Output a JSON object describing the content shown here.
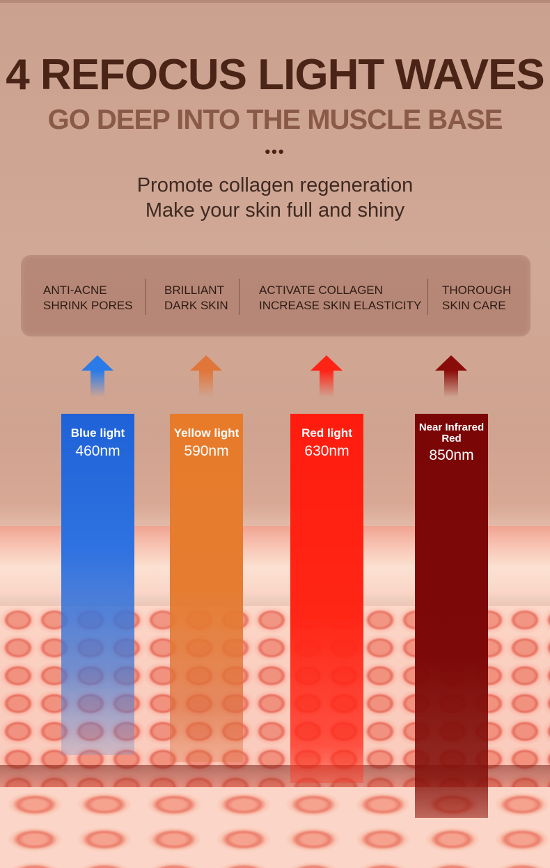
{
  "header": {
    "title": "4 REFOCUS LIGHT WAVES",
    "subtitle": "GO DEEP INTO THE MUSCLE BASE",
    "dots": "•••",
    "tagline_1": "Promote collagen regeneration",
    "tagline_2": "Make your skin full and shiny"
  },
  "benefits": [
    {
      "line1": "ANTI-ACNE",
      "line2": "SHRINK PORES"
    },
    {
      "line1": "BRILLIANT",
      "line2": "DARK SKIN"
    },
    {
      "line1": "ACTIVATE COLLAGEN",
      "line2": "INCREASE SKIN ELASTICITY"
    },
    {
      "line1": "THOROUGH",
      "line2": "SKIN CARE"
    }
  ],
  "lights": [
    {
      "name": "Blue light",
      "wavelength": "460nm",
      "color": "#1f62d8"
    },
    {
      "name": "Yellow light",
      "wavelength": "590nm",
      "color": "#e77b2a"
    },
    {
      "name": "Red light",
      "wavelength": "630nm",
      "color": "#ff1c0e"
    },
    {
      "name": "Near Infrared Red",
      "wavelength": "850nm",
      "color": "#7a0606"
    }
  ],
  "icons": [
    "up-arrow-icon"
  ]
}
